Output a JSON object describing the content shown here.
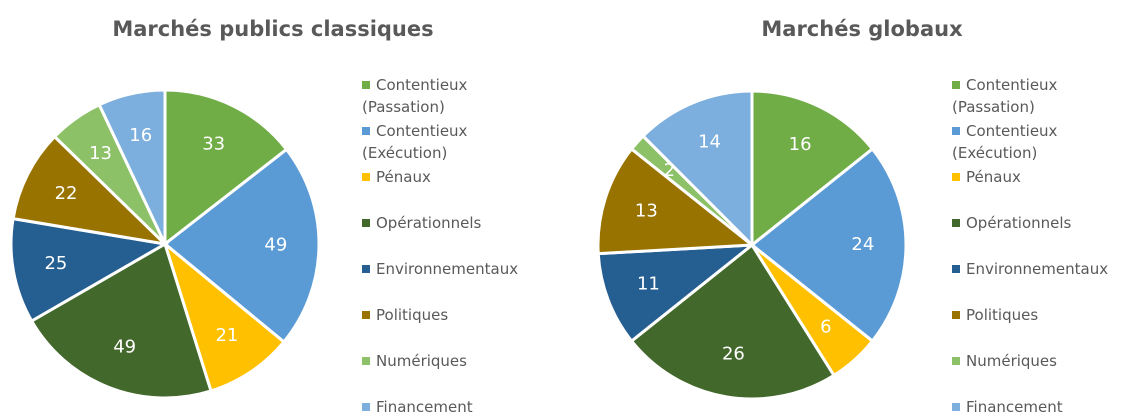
{
  "chart_data": [
    {
      "type": "pie",
      "title": "Marchés publics classiques",
      "categories": [
        "Contentieux (Passation)",
        "Contentieux (Exécution)",
        "Pénaux",
        "Opérationnels",
        "Environnementaux",
        "Politiques",
        "Numériques",
        "Financement"
      ],
      "values": [
        33,
        49,
        21,
        49,
        25,
        22,
        13,
        16
      ],
      "colors": [
        "#70ad47",
        "#5b9bd5",
        "#ffc000",
        "#43682b",
        "#255e91",
        "#997300",
        "#8cc168",
        "#7cafdd"
      ]
    },
    {
      "type": "pie",
      "title": "Marchés globaux",
      "categories": [
        "Contentieux (Passation)",
        "Contentieux (Exécution)",
        "Pénaux",
        "Opérationnels",
        "Environnementaux",
        "Politiques",
        "Numériques",
        "Financement"
      ],
      "values": [
        16,
        24,
        6,
        26,
        11,
        13,
        2,
        14
      ],
      "colors": [
        "#70ad47",
        "#5b9bd5",
        "#ffc000",
        "#43682b",
        "#255e91",
        "#997300",
        "#8cc168",
        "#7cafdd"
      ]
    }
  ]
}
